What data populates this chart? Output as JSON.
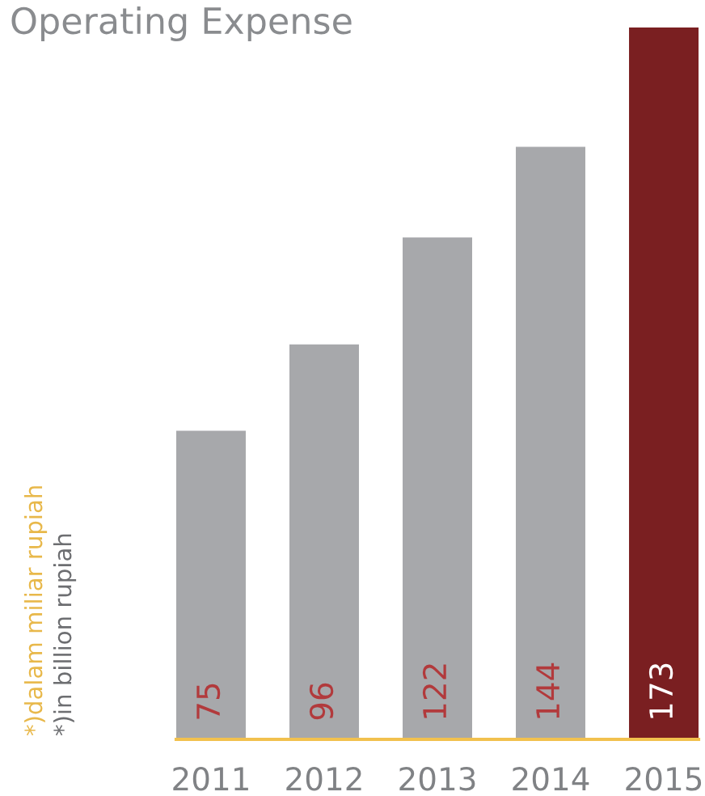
{
  "chart_data": {
    "type": "bar",
    "title": "Operating Expense",
    "categories": [
      "2011",
      "2012",
      "2013",
      "2014",
      "2015"
    ],
    "values": [
      75,
      96,
      122,
      144,
      173
    ],
    "colors": [
      "#a7a8ab",
      "#a7a8ab",
      "#a7a8ab",
      "#a7a8ab",
      "#7a1f21"
    ],
    "data_labels": true,
    "tick_labels": "x",
    "annotations": [
      "*)dalam miliar rupiah",
      "*)in billion rupiah"
    ]
  }
}
